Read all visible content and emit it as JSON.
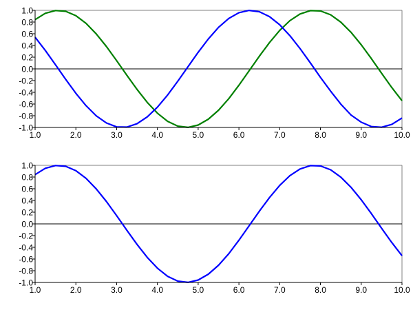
{
  "chart_data": [
    {
      "type": "line",
      "xlim": [
        1.0,
        10.0
      ],
      "ylim": [
        -1.0,
        1.0
      ],
      "xticks": [
        "1.0",
        "2.0",
        "3.0",
        "4.0",
        "5.0",
        "6.0",
        "7.0",
        "8.0",
        "9.0",
        "10.0"
      ],
      "yticks": [
        "1.0",
        "0.8",
        "0.6",
        "0.4",
        "0.2",
        "0.0",
        "-0.2",
        "-0.4",
        "-0.6",
        "-0.8",
        "-1.0"
      ],
      "grid": false,
      "zero_line": true,
      "x": [
        1,
        1.25,
        1.5,
        1.75,
        2,
        2.25,
        2.5,
        2.75,
        3,
        3.25,
        3.5,
        3.75,
        4,
        4.25,
        4.5,
        4.75,
        5,
        5.25,
        5.5,
        5.75,
        6,
        6.25,
        6.5,
        6.75,
        7,
        7.25,
        7.5,
        7.75,
        8,
        8.25,
        8.5,
        8.75,
        9,
        9.25,
        9.5,
        9.75,
        10
      ],
      "series": [
        {
          "color": "#008000",
          "values": [
            0.841,
            0.949,
            0.997,
            0.984,
            0.909,
            0.778,
            0.598,
            0.382,
            0.141,
            -0.108,
            -0.351,
            -0.572,
            -0.757,
            -0.895,
            -0.978,
            -0.999,
            -0.959,
            -0.859,
            -0.706,
            -0.51,
            -0.279,
            -0.033,
            0.215,
            0.45,
            0.657,
            0.823,
            0.938,
            0.995,
            0.989,
            0.923,
            0.798,
            0.625,
            0.412,
            0.174,
            -0.075,
            -0.319,
            -0.544
          ]
        },
        {
          "color": "#0000ff",
          "values": [
            0.54,
            0.315,
            0.071,
            -0.178,
            -0.416,
            -0.628,
            -0.801,
            -0.924,
            -0.99,
            -0.994,
            -0.936,
            -0.82,
            -0.654,
            -0.446,
            -0.211,
            0.037,
            0.284,
            0.512,
            0.709,
            0.861,
            0.96,
            0.999,
            0.977,
            0.893,
            0.754,
            0.568,
            0.347,
            0.103,
            -0.146,
            -0.381,
            -0.602,
            -0.788,
            -0.911,
            -0.985,
            -0.997,
            -0.948,
            -0.839
          ]
        }
      ]
    },
    {
      "type": "line",
      "xlim": [
        1.0,
        10.0
      ],
      "ylim": [
        -1.0,
        1.0
      ],
      "xticks": [
        "1.0",
        "2.0",
        "3.0",
        "4.0",
        "5.0",
        "6.0",
        "7.0",
        "8.0",
        "9.0",
        "10.0"
      ],
      "yticks": [
        "1.0",
        "0.8",
        "0.6",
        "0.4",
        "0.2",
        "0.0",
        "-0.2",
        "-0.4",
        "-0.6",
        "-0.8",
        "-1.0"
      ],
      "grid": false,
      "zero_line": true,
      "x": [
        1,
        1.25,
        1.5,
        1.75,
        2,
        2.25,
        2.5,
        2.75,
        3,
        3.25,
        3.5,
        3.75,
        4,
        4.25,
        4.5,
        4.75,
        5,
        5.25,
        5.5,
        5.75,
        6,
        6.25,
        6.5,
        6.75,
        7,
        7.25,
        7.5,
        7.75,
        8,
        8.25,
        8.5,
        8.75,
        9,
        9.25,
        9.5,
        9.75,
        10
      ],
      "series": [
        {
          "color": "#0000ff",
          "values": [
            0.841,
            0.949,
            0.997,
            0.984,
            0.909,
            0.778,
            0.598,
            0.382,
            0.141,
            -0.108,
            -0.351,
            -0.572,
            -0.757,
            -0.895,
            -0.978,
            -0.999,
            -0.959,
            -0.859,
            -0.706,
            -0.51,
            -0.279,
            -0.033,
            0.215,
            0.45,
            0.657,
            0.823,
            0.938,
            0.995,
            0.989,
            0.923,
            0.798,
            0.625,
            0.412,
            0.174,
            -0.075,
            -0.319,
            -0.544
          ]
        }
      ]
    }
  ]
}
